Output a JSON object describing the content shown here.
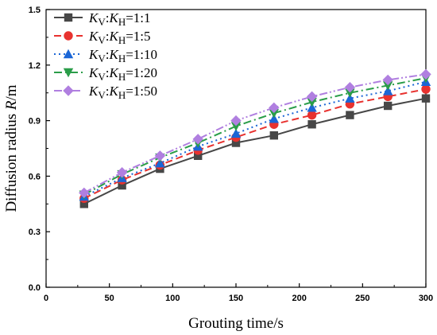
{
  "chart_data": {
    "type": "line",
    "xlabel": "Grouting time/s",
    "ylabel_prefix": "Diffusion radius ",
    "ylabel_var": "R",
    "ylabel_unit": "/m",
    "xlim": [
      0,
      300
    ],
    "ylim": [
      0,
      1.5
    ],
    "xticks": [
      0,
      50,
      100,
      150,
      200,
      250,
      300
    ],
    "yticks": [
      0.0,
      0.3,
      0.6,
      0.9,
      1.2,
      1.5
    ],
    "ytick_labels": [
      "0.0",
      "0.3",
      "0.6",
      "0.9",
      "1.2",
      "1.5"
    ],
    "grid": false,
    "legend_position": "top-left",
    "x": [
      30,
      60,
      90,
      120,
      150,
      180,
      210,
      240,
      270,
      300
    ],
    "series": [
      {
        "ratio": "1:1",
        "color": "#474747",
        "dash": "solid",
        "marker": "square",
        "values": [
          0.45,
          0.55,
          0.64,
          0.71,
          0.78,
          0.82,
          0.88,
          0.93,
          0.98,
          1.02
        ]
      },
      {
        "ratio": "1:5",
        "color": "#e8322f",
        "dash": "dash",
        "marker": "circle",
        "values": [
          0.48,
          0.58,
          0.66,
          0.74,
          0.81,
          0.88,
          0.93,
          0.99,
          1.03,
          1.07
        ]
      },
      {
        "ratio": "1:10",
        "color": "#1b66d6",
        "dash": "dot",
        "marker": "triangle-up",
        "values": [
          0.49,
          0.59,
          0.67,
          0.76,
          0.83,
          0.91,
          0.97,
          1.02,
          1.06,
          1.11
        ]
      },
      {
        "ratio": "1:20",
        "color": "#2a9d49",
        "dash": "dashdot",
        "marker": "triangle-down",
        "values": [
          0.5,
          0.61,
          0.7,
          0.78,
          0.87,
          0.94,
          1.0,
          1.05,
          1.09,
          1.13
        ]
      },
      {
        "ratio": "1:50",
        "color": "#b07fe0",
        "dash": "dashdotdot",
        "marker": "diamond",
        "values": [
          0.51,
          0.62,
          0.71,
          0.8,
          0.9,
          0.97,
          1.03,
          1.08,
          1.12,
          1.15
        ]
      }
    ],
    "legend": {
      "var1": "K",
      "sub1": "V",
      "sep": ":",
      "var2": "K",
      "sub2": "H",
      "eq": "="
    }
  }
}
